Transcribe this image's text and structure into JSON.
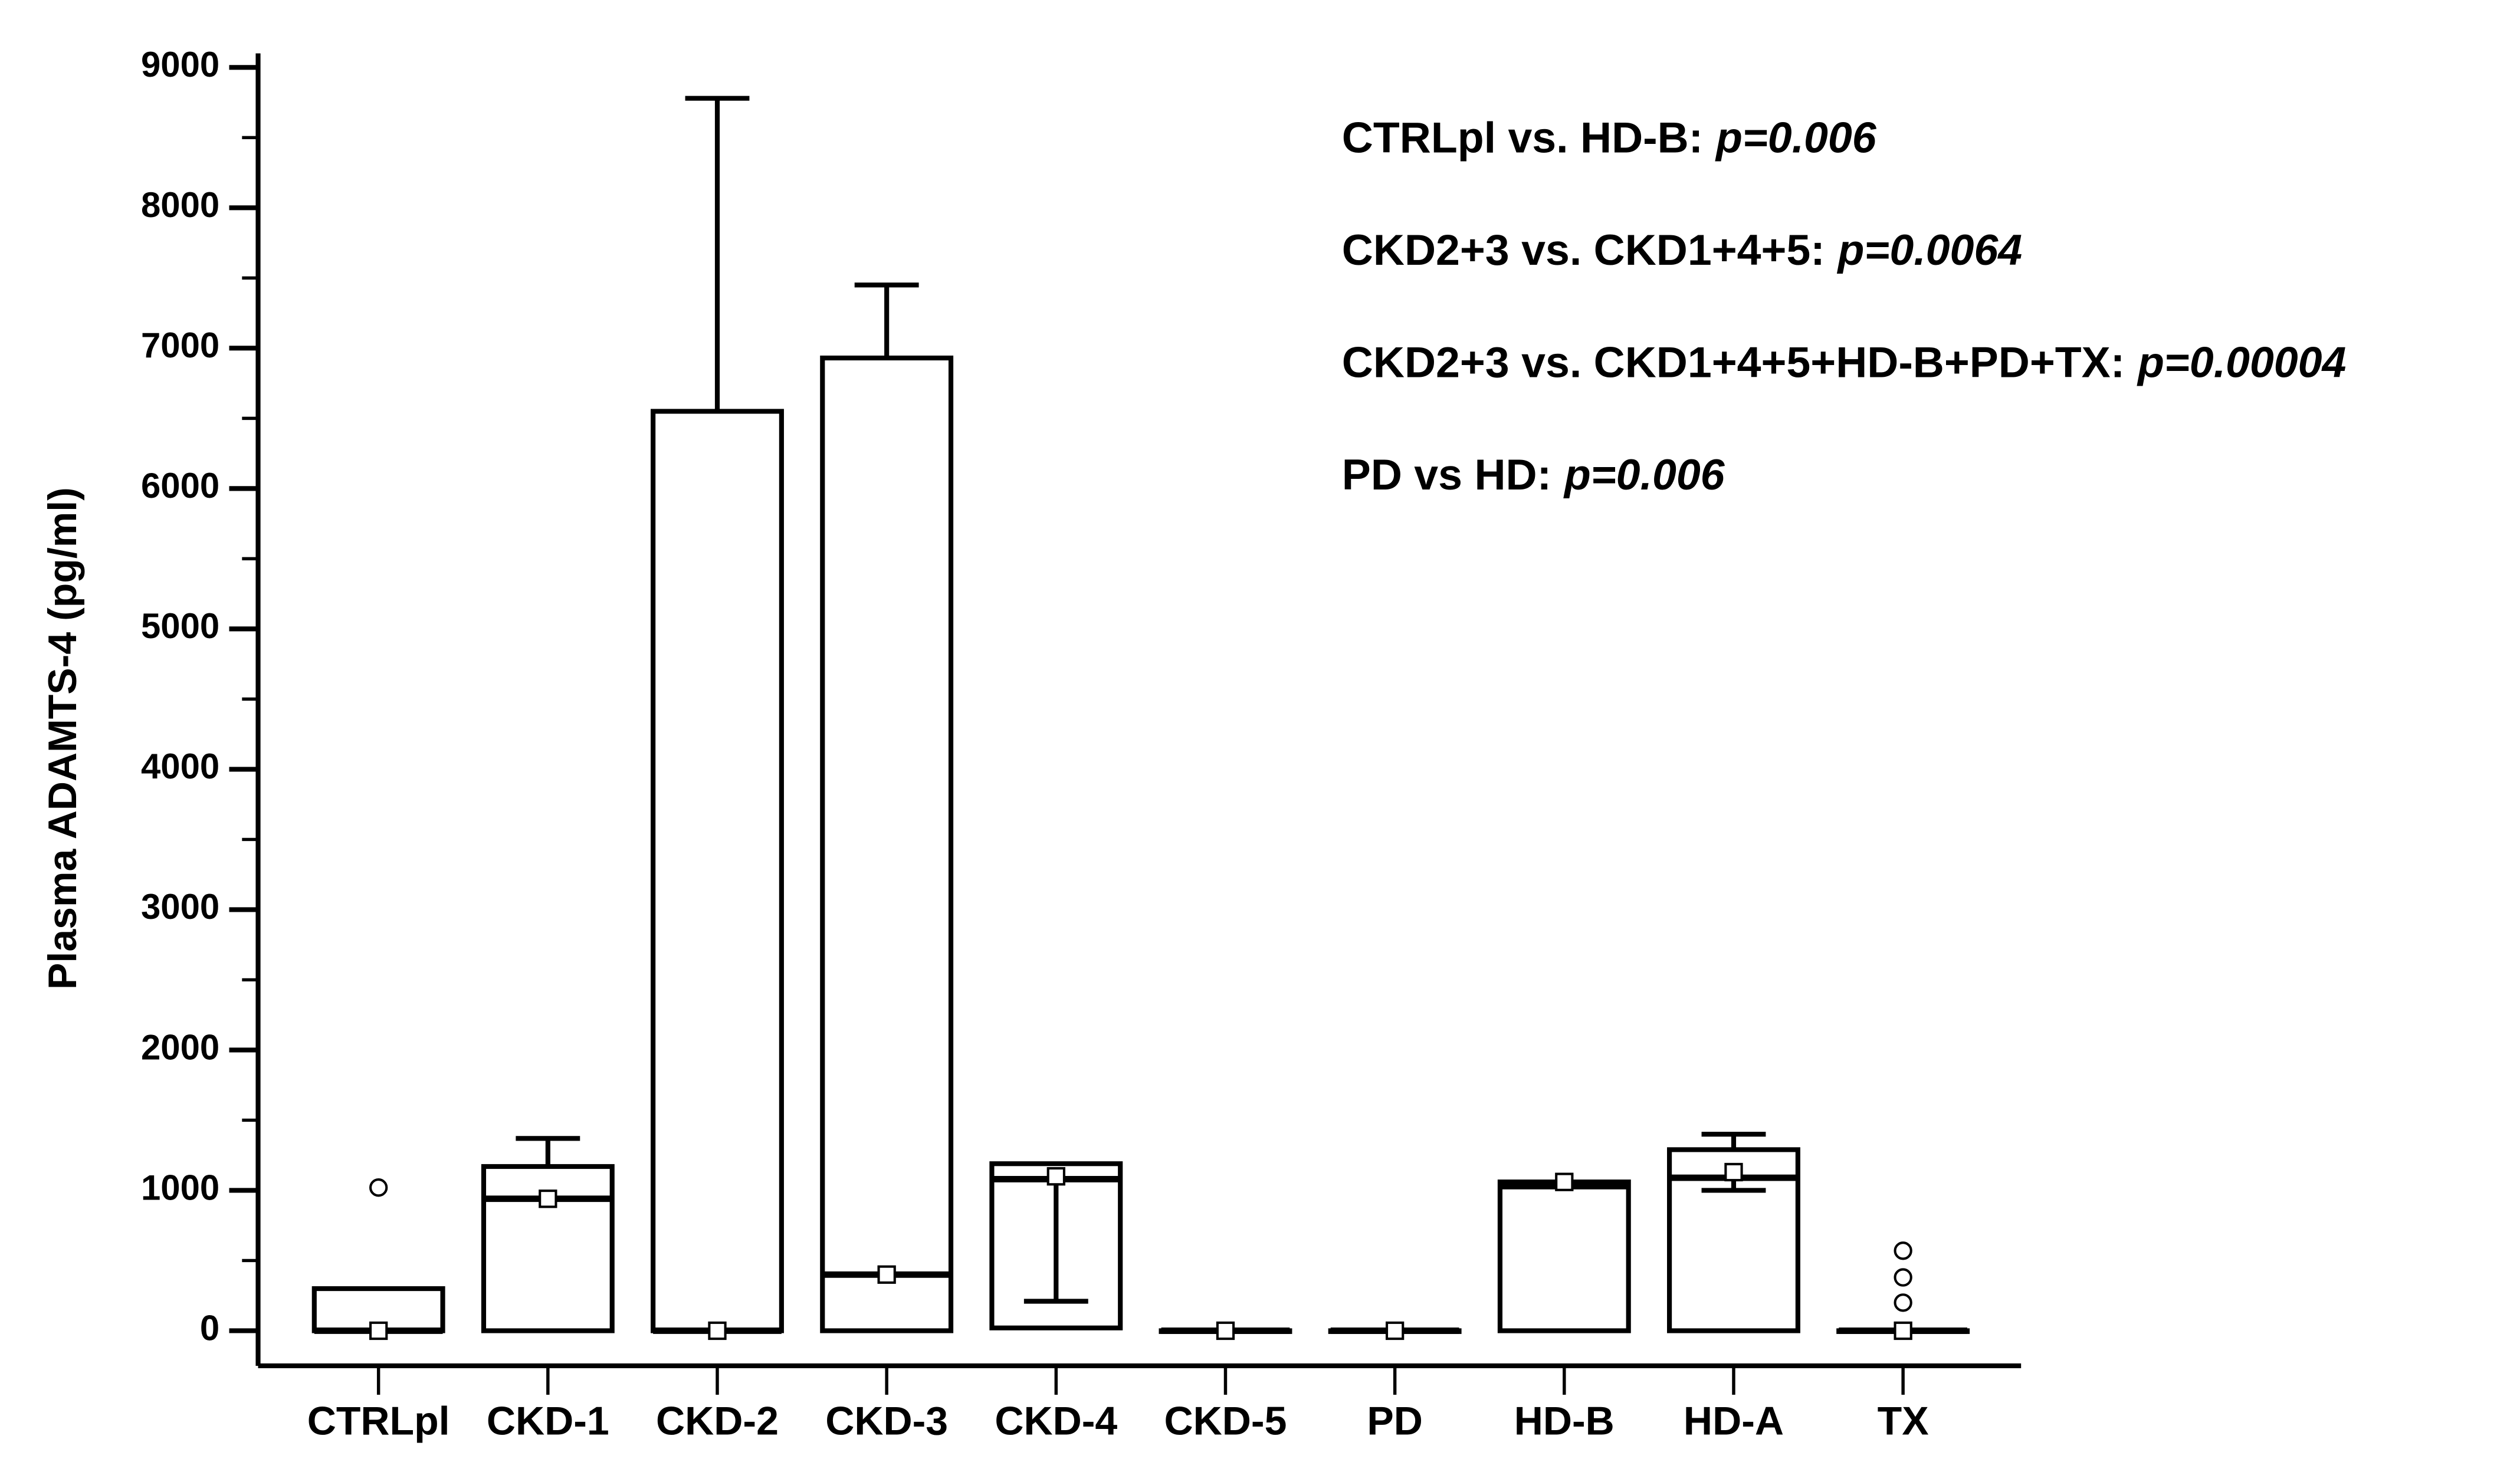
{
  "chart_data": {
    "type": "box",
    "ylabel": "Plasma ADAMTS-4 (pg/ml)",
    "categories": [
      "CTRLpl",
      "CKD-1",
      "CKD-2",
      "CKD-3",
      "CKD-4",
      "CKD-5",
      "PD",
      "HD-B",
      "HD-A",
      "TX"
    ],
    "q1": [
      0,
      0,
      0,
      0,
      20,
      0,
      0,
      0,
      0,
      0
    ],
    "median": [
      0,
      940,
      0,
      400,
      1080,
      0,
      0,
      1030,
      1090,
      0
    ],
    "q3": [
      300,
      1170,
      6550,
      6930,
      1190,
      0,
      0,
      1060,
      1290,
      0
    ],
    "whisker_low": [
      null,
      null,
      null,
      null,
      210,
      null,
      null,
      null,
      1000,
      null
    ],
    "whisker_high": [
      null,
      1370,
      8780,
      7450,
      null,
      null,
      null,
      null,
      1400,
      null
    ],
    "mean": [
      0,
      940,
      0,
      400,
      1100,
      0,
      0,
      1060,
      1130,
      0
    ],
    "outliers": [
      [
        1020
      ],
      [],
      [],
      [],
      [],
      [],
      [],
      [],
      [],
      [
        200,
        380,
        570
      ]
    ],
    "ylim": [
      -250,
      9100
    ],
    "yticks": [
      0,
      1000,
      2000,
      3000,
      4000,
      5000,
      6000,
      7000,
      8000,
      9000
    ],
    "yticks_minor": [
      500,
      1500,
      2500,
      3500,
      4500,
      5500,
      6500,
      7500,
      8500
    ],
    "color": "#000000",
    "annotations": [
      {
        "text": "CTRLpl vs. HD-B:",
        "p": "p=0.006"
      },
      {
        "text": "CKD2+3 vs. CKD1+4+5:",
        "p": "p=0.0064"
      },
      {
        "text": "CKD2+3 vs. CKD1+4+5+HD-B+PD+TX:",
        "p": "p=0.00004"
      },
      {
        "text": "PD vs HD:",
        "p": "p=0.006"
      }
    ]
  }
}
